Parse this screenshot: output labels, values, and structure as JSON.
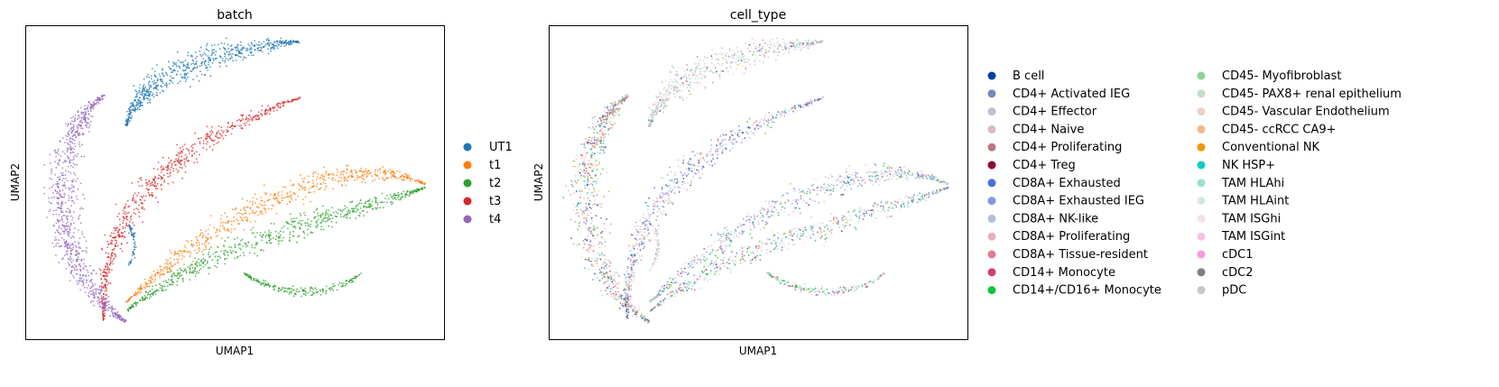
{
  "chart_data": [
    {
      "type": "scatter",
      "title": "batch",
      "xlabel": "UMAP1",
      "ylabel": "UMAP2",
      "grid": false,
      "legend_position": "right",
      "legend": [
        {
          "label": "UT1",
          "color": "#1f77b4"
        },
        {
          "label": "t1",
          "color": "#ff7f0e"
        },
        {
          "label": "t2",
          "color": "#2ca02c"
        },
        {
          "label": "t3",
          "color": "#d62728"
        },
        {
          "label": "t4",
          "color": "#9467bd"
        }
      ]
    },
    {
      "type": "scatter",
      "title": "cell_type",
      "xlabel": "UMAP1",
      "ylabel": "UMAP2",
      "grid": false,
      "legend_position": "right",
      "legend": [
        {
          "label": "B cell",
          "color": "#023fa5"
        },
        {
          "label": "CD4+ Activated IEG",
          "color": "#7d87b9"
        },
        {
          "label": "CD4+ Effector",
          "color": "#bec1d4"
        },
        {
          "label": "CD4+ Naive",
          "color": "#d6bcc0"
        },
        {
          "label": "CD4+ Proliferating",
          "color": "#bb7784"
        },
        {
          "label": "CD4+ Treg",
          "color": "#8e063b"
        },
        {
          "label": "CD8A+ Exhausted",
          "color": "#4a6fe3"
        },
        {
          "label": "CD8A+ Exhausted IEG",
          "color": "#8595e1"
        },
        {
          "label": "CD8A+ NK-like",
          "color": "#b5bbe3"
        },
        {
          "label": "CD8A+ Proliferating",
          "color": "#e6afb9"
        },
        {
          "label": "CD8A+ Tissue-resident",
          "color": "#e07b91"
        },
        {
          "label": "CD14+ Monocyte",
          "color": "#d33f6a"
        },
        {
          "label": "CD14+/CD16+ Monocyte",
          "color": "#11c638"
        },
        {
          "label": "CD45- Myofibroblast",
          "color": "#8dd593"
        },
        {
          "label": "CD45- PAX8+ renal epithelium",
          "color": "#c6dec7"
        },
        {
          "label": "CD45- Vascular Endothelium",
          "color": "#ead3c6"
        },
        {
          "label": "CD45- ccRCC CA9+",
          "color": "#f0b98d"
        },
        {
          "label": "Conventional NK",
          "color": "#ef9708"
        },
        {
          "label": "NK HSP+",
          "color": "#0fcfc0"
        },
        {
          "label": "TAM HLAhi",
          "color": "#9cded6"
        },
        {
          "label": "TAM HLAint",
          "color": "#d5eae7"
        },
        {
          "label": "TAM ISGhi",
          "color": "#f3e1eb"
        },
        {
          "label": "TAM ISGint",
          "color": "#f6c4e1"
        },
        {
          "label": "cDC1",
          "color": "#f79cd4"
        },
        {
          "label": "cDC2",
          "color": "#7f7f7f"
        },
        {
          "label": "pDC",
          "color": "#c7c7c7"
        }
      ]
    }
  ]
}
